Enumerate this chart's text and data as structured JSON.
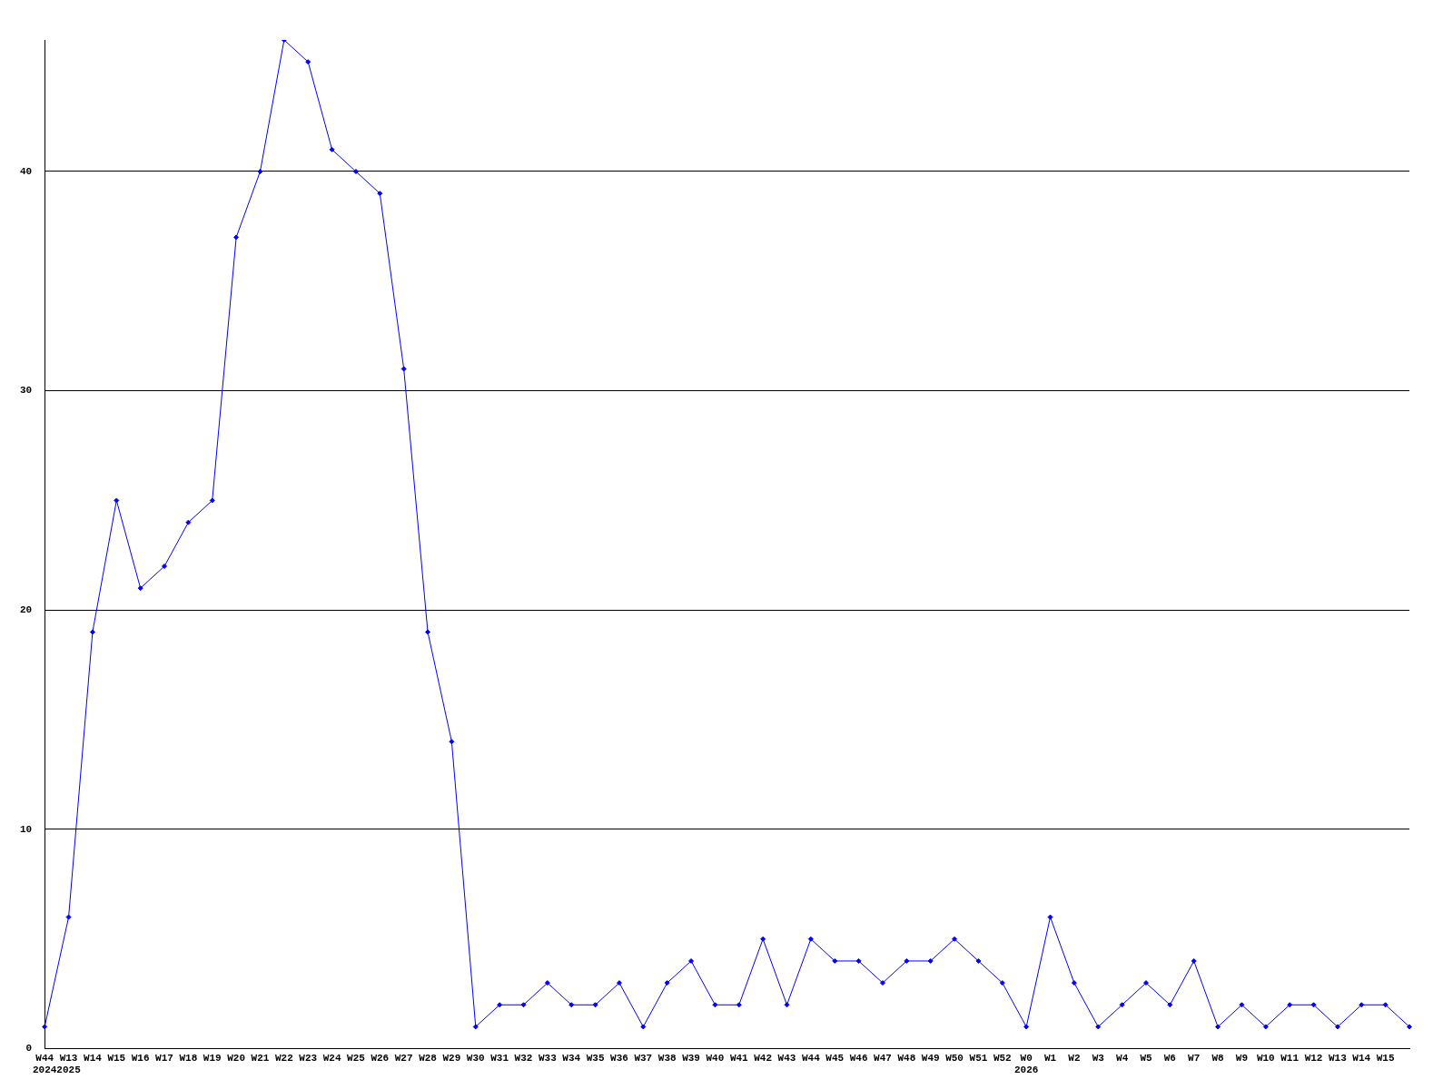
{
  "chart_data": {
    "type": "line",
    "categories": [
      "W44\n2024",
      "W13\n2025",
      "W14",
      "W15",
      "W16",
      "W17",
      "W18",
      "W19",
      "W20",
      "W21",
      "W22",
      "W23",
      "W24",
      "W25",
      "W26",
      "W27",
      "W28",
      "W29",
      "W30",
      "W31",
      "W32",
      "W33",
      "W34",
      "W35",
      "W36",
      "W37",
      "W38",
      "W39",
      "W40",
      "W41",
      "W42",
      "W43",
      "W44",
      "W45",
      "W46",
      "W47",
      "W48",
      "W49",
      "W50",
      "W51",
      "W52",
      "W0\n2026",
      "W1",
      "W2",
      "W3",
      "W4",
      "W5",
      "W6",
      "W7",
      "W8",
      "W9",
      "W10",
      "W11",
      "W12",
      "W13",
      "W14",
      "W15",
      null
    ],
    "series": [
      {
        "color": "#0000ff",
        "values": [
          1,
          6,
          19,
          25,
          21,
          22,
          24,
          25,
          37,
          40,
          46,
          45,
          41,
          40,
          39,
          31,
          19,
          14,
          1,
          2,
          2,
          3,
          2,
          2,
          3,
          1,
          3,
          4,
          2,
          2,
          5,
          2,
          5,
          4,
          4,
          3,
          4,
          4,
          5,
          4,
          3,
          1,
          6,
          3,
          1,
          2,
          3,
          2,
          4,
          1,
          2,
          1,
          2,
          2,
          1,
          2,
          2,
          1
        ]
      }
    ],
    "ylim": [
      0,
      46
    ],
    "yticks": [
      0,
      10,
      20,
      30,
      40
    ],
    "grid": "y",
    "legend": false,
    "marker": "diamond",
    "line_style": "solid"
  }
}
